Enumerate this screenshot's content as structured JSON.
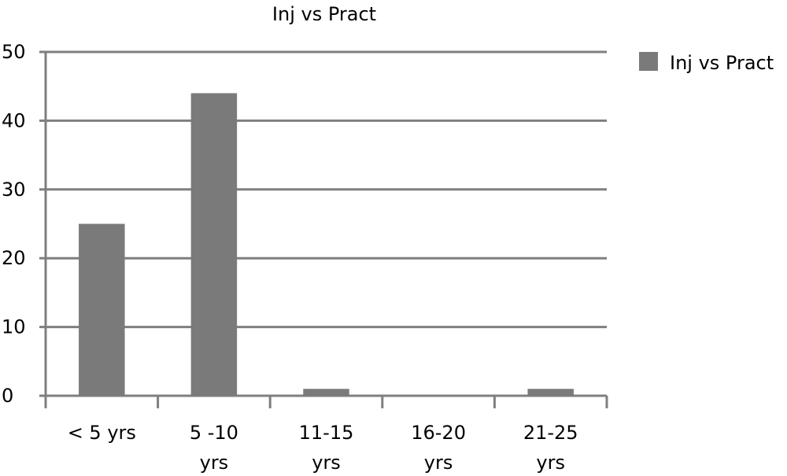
{
  "chart_data": {
    "type": "bar",
    "title": "Inj vs Pract",
    "categories": [
      [
        "< 5 yrs"
      ],
      [
        "5 -10",
        "yrs"
      ],
      [
        "11-15",
        "yrs"
      ],
      [
        "16-20",
        "yrs"
      ],
      [
        "21-25",
        "yrs"
      ]
    ],
    "series": [
      {
        "name": "Inj vs Pract",
        "values": [
          25,
          44,
          1,
          0,
          1
        ],
        "color": "#7a7a7a"
      }
    ],
    "xlabel": "",
    "ylabel": "",
    "ylim": [
      0,
      50
    ],
    "yticks": [
      0,
      10,
      20,
      30,
      40,
      50
    ],
    "grid": true,
    "legend": "right"
  }
}
